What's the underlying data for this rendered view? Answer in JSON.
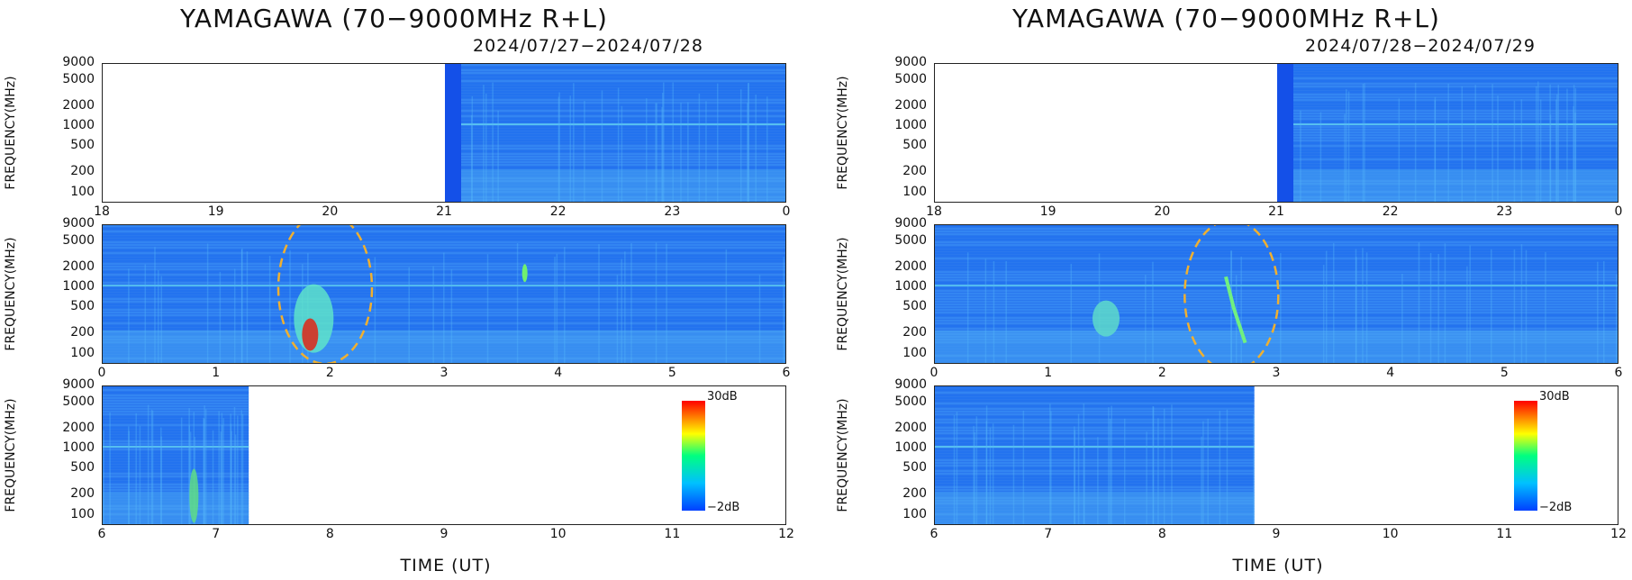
{
  "chart_data": [
    {
      "type": "heatmap",
      "title": "YAMAGAWA (70−9000MHz R+L)",
      "subtitle": "2024/07/27−2024/07/28",
      "xlabel": "TIME (UT)",
      "ylabel": "FREQUENCY(MHz)",
      "yscale": "log",
      "ylim": [
        70,
        9000
      ],
      "yticks": [
        "9000",
        "5000",
        "2000",
        "1000",
        "500",
        "200",
        "100"
      ],
      "colorbar": {
        "max_label": "30dB",
        "min_label": "−2dB",
        "range_db": [
          -2,
          30
        ]
      },
      "panels": [
        {
          "xticks": [
            "18",
            "19",
            "20",
            "21",
            "22",
            "23",
            "0"
          ],
          "xlim": [
            18,
            24
          ],
          "data_start": 21.0,
          "data_end": 24.0
        },
        {
          "xticks": [
            "0",
            "1",
            "2",
            "3",
            "4",
            "5",
            "6"
          ],
          "xlim": [
            0,
            6
          ],
          "data_start": 0.0,
          "data_end": 6.0,
          "annotation": "burst near 1.9 UT"
        },
        {
          "xticks": [
            "6",
            "7",
            "8",
            "9",
            "10",
            "11",
            "12"
          ],
          "xlim": [
            6,
            12
          ],
          "data_start": 6.0,
          "data_end": 7.28
        }
      ]
    },
    {
      "type": "heatmap",
      "title": "YAMAGAWA (70−9000MHz R+L)",
      "subtitle": "2024/07/28−2024/07/29",
      "xlabel": "TIME (UT)",
      "ylabel": "FREQUENCY(MHz)",
      "yscale": "log",
      "ylim": [
        70,
        9000
      ],
      "yticks": [
        "9000",
        "5000",
        "2000",
        "1000",
        "500",
        "200",
        "100"
      ],
      "colorbar": {
        "max_label": "30dB",
        "min_label": "−2dB",
        "range_db": [
          -2,
          30
        ]
      },
      "panels": [
        {
          "xticks": [
            "18",
            "19",
            "20",
            "21",
            "22",
            "23",
            "0"
          ],
          "xlim": [
            18,
            24
          ],
          "data_start": 21.0,
          "data_end": 24.0
        },
        {
          "xticks": [
            "0",
            "1",
            "2",
            "3",
            "4",
            "5",
            "6"
          ],
          "xlim": [
            0,
            6
          ],
          "data_start": 0.0,
          "data_end": 6.0,
          "annotation": "burst near 2.6 UT"
        },
        {
          "xticks": [
            "6",
            "7",
            "8",
            "9",
            "10",
            "11",
            "12"
          ],
          "xlim": [
            6,
            12
          ],
          "data_start": 6.0,
          "data_end": 8.8
        }
      ]
    }
  ]
}
